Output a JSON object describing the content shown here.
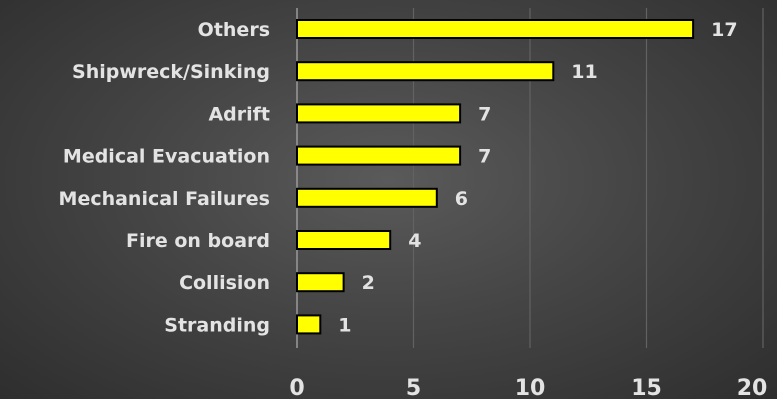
{
  "chart_data": {
    "type": "bar",
    "orientation": "horizontal",
    "categories": [
      "Others",
      "Shipwreck/Sinking",
      "Adrift",
      "Medical Evacuation",
      "Mechanical Failures",
      "Fire on board",
      "Collision",
      "Stranding"
    ],
    "values": [
      17,
      11,
      7,
      7,
      6,
      4,
      2,
      1
    ],
    "title": "",
    "xlabel": "",
    "ylabel": "",
    "xlim": [
      0,
      20
    ],
    "xticks": [
      0,
      5,
      10,
      15,
      20
    ],
    "grid": true,
    "legend": "none",
    "colors": {
      "bar_fill": "#ffff00",
      "bar_outline": "#000000",
      "text": "#e3e3e3",
      "grid": "#626262",
      "axis": "#9a9a9a"
    }
  }
}
